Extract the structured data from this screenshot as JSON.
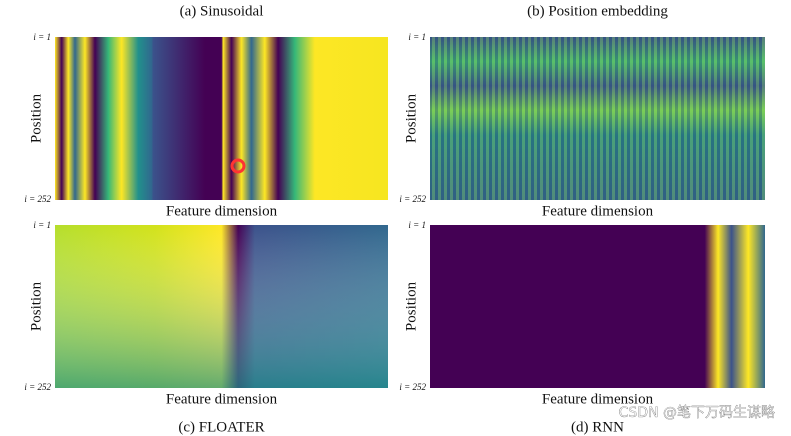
{
  "panels": [
    {
      "title": "(a) Sinusoidal",
      "y_label": "Position",
      "y_top": "i = 1",
      "y_bottom": "i = 252",
      "x_label": "Feature dimension"
    },
    {
      "title": "(b) Position embedding",
      "y_label": "Position",
      "y_top": "i = 1",
      "y_bottom": "i = 252",
      "x_label": "Feature dimension"
    },
    {
      "title": "(c) FLOATER",
      "y_label": "Position",
      "y_top": "i = 1",
      "y_bottom": "i = 252",
      "x_label": "Feature dimension"
    },
    {
      "title": "(d) RNN",
      "y_label": "Position",
      "y_top": "i = 1",
      "y_bottom": "i = 252",
      "x_label": "Feature dimension"
    }
  ],
  "watermark": "CSDN @笔下万码生谋略"
}
